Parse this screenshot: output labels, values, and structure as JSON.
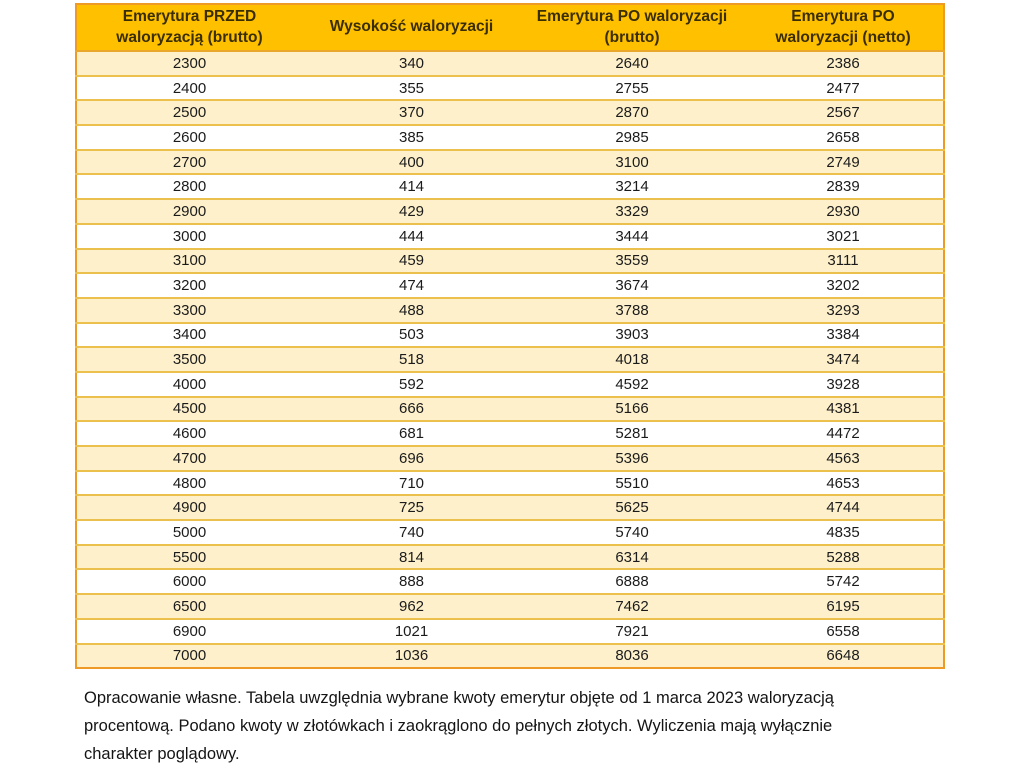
{
  "chart_data": {
    "type": "table",
    "columns": [
      "Emerytura PRZED waloryzacją (brutto)",
      "Wysokość waloryzacji",
      "Emerytura PO waloryzacji (brutto)",
      "Emerytura PO waloryzacji (netto)"
    ],
    "rows": [
      [
        "2300",
        "340",
        "2640",
        "2386"
      ],
      [
        "2400",
        "355",
        "2755",
        "2477"
      ],
      [
        "2500",
        "370",
        "2870",
        "2567"
      ],
      [
        "2600",
        "385",
        "2985",
        "2658"
      ],
      [
        "2700",
        "400",
        "3100",
        "2749"
      ],
      [
        "2800",
        "414",
        "3214",
        "2839"
      ],
      [
        "2900",
        "429",
        "3329",
        "2930"
      ],
      [
        "3000",
        "444",
        "3444",
        "3021"
      ],
      [
        "3100",
        "459",
        "3559",
        "3111"
      ],
      [
        "3200",
        "474",
        "3674",
        "3202"
      ],
      [
        "3300",
        "488",
        "3788",
        "3293"
      ],
      [
        "3400",
        "503",
        "3903",
        "3384"
      ],
      [
        "3500",
        "518",
        "4018",
        "3474"
      ],
      [
        "4000",
        "592",
        "4592",
        "3928"
      ],
      [
        "4500",
        "666",
        "5166",
        "4381"
      ],
      [
        "4600",
        "681",
        "5281",
        "4472"
      ],
      [
        "4700",
        "696",
        "5396",
        "4563"
      ],
      [
        "4800",
        "710",
        "5510",
        "4653"
      ],
      [
        "4900",
        "725",
        "5625",
        "4744"
      ],
      [
        "5000",
        "740",
        "5740",
        "4835"
      ],
      [
        "5500",
        "814",
        "6314",
        "5288"
      ],
      [
        "6000",
        "888",
        "6888",
        "5742"
      ],
      [
        "6500",
        "962",
        "7462",
        "6195"
      ],
      [
        "6900",
        "1021",
        "7921",
        "6558"
      ],
      [
        "7000",
        "1036",
        "8036",
        "6648"
      ]
    ],
    "title": "",
    "caption": "Opracowanie własne. Tabela uwzględnia wybrane kwoty emerytur objęte od 1 marca 2023 waloryzacją procentową. Podano kwoty w złotówkach i zaokrąglono do pełnych złotych. Wyliczenia mają wyłącznie charakter poglądowy.",
    "layout_hints": {
      "header_bg": "#FFC000",
      "row_alt_bg": "#FDF0CB",
      "row_bg": "#FFFFFF",
      "outer_border": "#EE9A26",
      "row_separator": "#ECC04C",
      "header_text_color": "#3A2E00",
      "cell_text_color": "#1B1B1B"
    }
  },
  "footer": {
    "lines": [
      "Opracowanie własne. Tabela uwzględnia wybrane kwoty emerytur objęte od 1 marca 2023 waloryzacją",
      "procentową. Podano kwoty w złotówkach i zaokrąglono do pełnych złotych. Wyliczenia mają wyłącznie",
      "charakter poglądowy."
    ]
  }
}
